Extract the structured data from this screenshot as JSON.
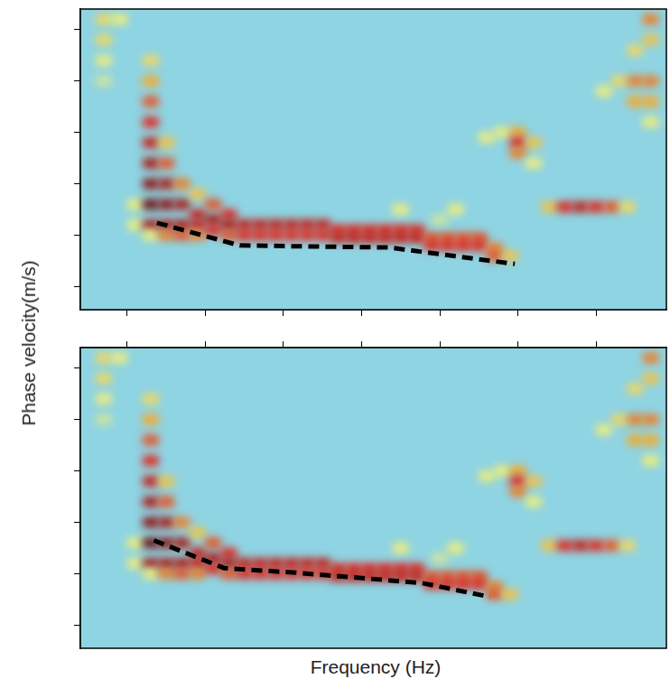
{
  "y_label": "Phase velocity(m/s)",
  "x_label": "Frequency (Hz)",
  "chart_data": [
    {
      "type": "line",
      "xlim": [
        4,
        79
      ],
      "ylim": [
        55,
        640
      ],
      "xticks": [
        10,
        20,
        30,
        40,
        50,
        60,
        70
      ],
      "yticks": [
        100,
        200,
        300,
        400,
        500,
        600
      ],
      "tick_labels": false,
      "heatmap": {
        "cell_size": [
          2,
          20
        ],
        "zlim": [
          0,
          1
        ],
        "cells": [
          [
            7,
            620,
            0.55
          ],
          [
            7,
            580,
            0.55
          ],
          [
            7,
            540,
            0.5
          ],
          [
            7,
            500,
            0.45
          ],
          [
            9,
            620,
            0.5
          ],
          [
            11,
            260,
            0.5
          ],
          [
            11,
            220,
            0.5
          ],
          [
            13,
            540,
            0.55
          ],
          [
            13,
            500,
            0.65
          ],
          [
            13,
            460,
            0.75
          ],
          [
            13,
            420,
            0.8
          ],
          [
            13,
            380,
            0.85
          ],
          [
            13,
            340,
            0.9
          ],
          [
            13,
            300,
            0.95
          ],
          [
            13,
            260,
            1
          ],
          [
            13,
            220,
            0.9
          ],
          [
            13,
            200,
            0.5
          ],
          [
            15,
            380,
            0.6
          ],
          [
            15,
            340,
            0.75
          ],
          [
            15,
            300,
            0.9
          ],
          [
            15,
            260,
            0.95
          ],
          [
            15,
            220,
            0.9
          ],
          [
            15,
            200,
            0.7
          ],
          [
            17,
            300,
            0.7
          ],
          [
            17,
            260,
            0.9
          ],
          [
            17,
            220,
            0.9
          ],
          [
            17,
            200,
            0.75
          ],
          [
            19,
            280,
            0.6
          ],
          [
            19,
            240,
            0.85
          ],
          [
            19,
            220,
            0.85
          ],
          [
            19,
            200,
            0.7
          ],
          [
            21,
            260,
            0.75
          ],
          [
            21,
            230,
            0.9
          ],
          [
            21,
            210,
            0.8
          ],
          [
            23,
            240,
            0.8
          ],
          [
            23,
            220,
            0.9
          ],
          [
            23,
            200,
            0.75
          ],
          [
            25,
            220,
            0.85
          ],
          [
            25,
            200,
            0.8
          ],
          [
            27,
            220,
            0.85
          ],
          [
            27,
            200,
            0.8
          ],
          [
            29,
            220,
            0.85
          ],
          [
            29,
            200,
            0.8
          ],
          [
            31,
            220,
            0.85
          ],
          [
            31,
            200,
            0.8
          ],
          [
            33,
            220,
            0.85
          ],
          [
            33,
            200,
            0.8
          ],
          [
            35,
            220,
            0.85
          ],
          [
            35,
            200,
            0.8
          ],
          [
            37,
            210,
            0.8
          ],
          [
            37,
            195,
            0.85
          ],
          [
            39,
            210,
            0.8
          ],
          [
            39,
            195,
            0.85
          ],
          [
            41,
            210,
            0.8
          ],
          [
            41,
            195,
            0.85
          ],
          [
            43,
            210,
            0.8
          ],
          [
            43,
            195,
            0.85
          ],
          [
            45,
            210,
            0.8
          ],
          [
            45,
            195,
            0.85
          ],
          [
            47,
            210,
            0.8
          ],
          [
            47,
            195,
            0.85
          ],
          [
            49,
            195,
            0.75
          ],
          [
            49,
            180,
            0.8
          ],
          [
            51,
            195,
            0.75
          ],
          [
            51,
            180,
            0.8
          ],
          [
            53,
            195,
            0.75
          ],
          [
            53,
            180,
            0.8
          ],
          [
            55,
            195,
            0.75
          ],
          [
            55,
            180,
            0.8
          ],
          [
            57,
            175,
            0.7
          ],
          [
            57,
            160,
            0.75
          ],
          [
            59,
            160,
            0.6
          ],
          [
            45,
            250,
            0.5
          ],
          [
            50,
            230,
            0.45
          ],
          [
            52,
            250,
            0.5
          ],
          [
            56,
            390,
            0.5
          ],
          [
            58,
            400,
            0.5
          ],
          [
            60,
            400,
            0.65
          ],
          [
            60,
            380,
            0.8
          ],
          [
            60,
            360,
            0.7
          ],
          [
            62,
            380,
            0.6
          ],
          [
            62,
            340,
            0.5
          ],
          [
            64,
            255,
            0.6
          ],
          [
            66,
            255,
            0.8
          ],
          [
            68,
            255,
            0.85
          ],
          [
            70,
            255,
            0.8
          ],
          [
            72,
            255,
            0.75
          ],
          [
            74,
            255,
            0.55
          ],
          [
            71,
            480,
            0.5
          ],
          [
            73,
            500,
            0.55
          ],
          [
            75,
            560,
            0.55
          ],
          [
            75,
            500,
            0.7
          ],
          [
            75,
            460,
            0.65
          ],
          [
            77,
            620,
            0.7
          ],
          [
            77,
            580,
            0.6
          ],
          [
            77,
            500,
            0.7
          ],
          [
            77,
            460,
            0.65
          ],
          [
            77,
            420,
            0.5
          ]
        ]
      },
      "series": [
        {
          "color": "#000000",
          "line_style": "dashed",
          "x": [
            13.8,
            24.4,
            43.5,
            59.6
          ],
          "values": [
            224,
            180,
            176,
            144
          ]
        }
      ]
    },
    {
      "type": "line",
      "xlim": [
        4,
        79
      ],
      "ylim": [
        55,
        640
      ],
      "xticks": [
        10,
        20,
        30,
        40,
        50,
        60,
        70
      ],
      "yticks": [
        100,
        200,
        300,
        400,
        500,
        600
      ],
      "tick_labels": false,
      "heatmap": {
        "cell_size": [
          2,
          20
        ],
        "zlim": [
          0,
          1
        ],
        "cells": [
          [
            7,
            620,
            0.55
          ],
          [
            7,
            580,
            0.55
          ],
          [
            7,
            540,
            0.5
          ],
          [
            7,
            500,
            0.45
          ],
          [
            9,
            620,
            0.5
          ],
          [
            11,
            260,
            0.5
          ],
          [
            11,
            220,
            0.5
          ],
          [
            13,
            540,
            0.55
          ],
          [
            13,
            500,
            0.65
          ],
          [
            13,
            460,
            0.75
          ],
          [
            13,
            420,
            0.8
          ],
          [
            13,
            380,
            0.85
          ],
          [
            13,
            340,
            0.9
          ],
          [
            13,
            300,
            0.95
          ],
          [
            13,
            260,
            1
          ],
          [
            13,
            220,
            0.9
          ],
          [
            13,
            200,
            0.5
          ],
          [
            15,
            380,
            0.6
          ],
          [
            15,
            340,
            0.75
          ],
          [
            15,
            300,
            0.9
          ],
          [
            15,
            260,
            0.95
          ],
          [
            15,
            220,
            0.9
          ],
          [
            15,
            200,
            0.7
          ],
          [
            17,
            300,
            0.7
          ],
          [
            17,
            260,
            0.9
          ],
          [
            17,
            220,
            0.9
          ],
          [
            17,
            200,
            0.75
          ],
          [
            19,
            280,
            0.6
          ],
          [
            19,
            240,
            0.85
          ],
          [
            19,
            220,
            0.85
          ],
          [
            19,
            200,
            0.7
          ],
          [
            21,
            260,
            0.75
          ],
          [
            21,
            230,
            0.9
          ],
          [
            21,
            210,
            0.8
          ],
          [
            23,
            240,
            0.8
          ],
          [
            23,
            220,
            0.9
          ],
          [
            23,
            200,
            0.75
          ],
          [
            25,
            220,
            0.85
          ],
          [
            25,
            200,
            0.8
          ],
          [
            27,
            220,
            0.85
          ],
          [
            27,
            200,
            0.8
          ],
          [
            29,
            220,
            0.85
          ],
          [
            29,
            200,
            0.8
          ],
          [
            31,
            220,
            0.85
          ],
          [
            31,
            200,
            0.8
          ],
          [
            33,
            220,
            0.85
          ],
          [
            33,
            200,
            0.8
          ],
          [
            35,
            220,
            0.85
          ],
          [
            35,
            200,
            0.8
          ],
          [
            37,
            210,
            0.8
          ],
          [
            37,
            195,
            0.85
          ],
          [
            39,
            210,
            0.8
          ],
          [
            39,
            195,
            0.85
          ],
          [
            41,
            210,
            0.8
          ],
          [
            41,
            195,
            0.85
          ],
          [
            43,
            210,
            0.8
          ],
          [
            43,
            195,
            0.85
          ],
          [
            45,
            210,
            0.8
          ],
          [
            45,
            195,
            0.85
          ],
          [
            47,
            210,
            0.8
          ],
          [
            47,
            195,
            0.85
          ],
          [
            49,
            195,
            0.75
          ],
          [
            49,
            180,
            0.8
          ],
          [
            51,
            195,
            0.75
          ],
          [
            51,
            180,
            0.8
          ],
          [
            53,
            195,
            0.75
          ],
          [
            53,
            180,
            0.8
          ],
          [
            55,
            195,
            0.75
          ],
          [
            55,
            180,
            0.8
          ],
          [
            57,
            175,
            0.7
          ],
          [
            57,
            160,
            0.75
          ],
          [
            59,
            160,
            0.6
          ],
          [
            45,
            250,
            0.5
          ],
          [
            50,
            230,
            0.45
          ],
          [
            52,
            250,
            0.5
          ],
          [
            56,
            390,
            0.5
          ],
          [
            58,
            400,
            0.5
          ],
          [
            60,
            400,
            0.65
          ],
          [
            60,
            380,
            0.8
          ],
          [
            60,
            360,
            0.7
          ],
          [
            62,
            380,
            0.6
          ],
          [
            62,
            340,
            0.5
          ],
          [
            64,
            255,
            0.6
          ],
          [
            66,
            255,
            0.8
          ],
          [
            68,
            255,
            0.85
          ],
          [
            70,
            255,
            0.8
          ],
          [
            72,
            255,
            0.75
          ],
          [
            74,
            255,
            0.55
          ],
          [
            71,
            480,
            0.5
          ],
          [
            73,
            500,
            0.55
          ],
          [
            75,
            560,
            0.55
          ],
          [
            75,
            500,
            0.7
          ],
          [
            75,
            460,
            0.65
          ],
          [
            77,
            620,
            0.7
          ],
          [
            77,
            580,
            0.6
          ],
          [
            77,
            500,
            0.7
          ],
          [
            77,
            460,
            0.65
          ],
          [
            77,
            420,
            0.5
          ]
        ]
      },
      "series": [
        {
          "color": "#000000",
          "line_style": "dashed",
          "x": [
            13.4,
            22.4,
            31.6,
            47.7,
            56.4
          ],
          "values": [
            265,
            211,
            202,
            182,
            155
          ]
        }
      ]
    }
  ]
}
